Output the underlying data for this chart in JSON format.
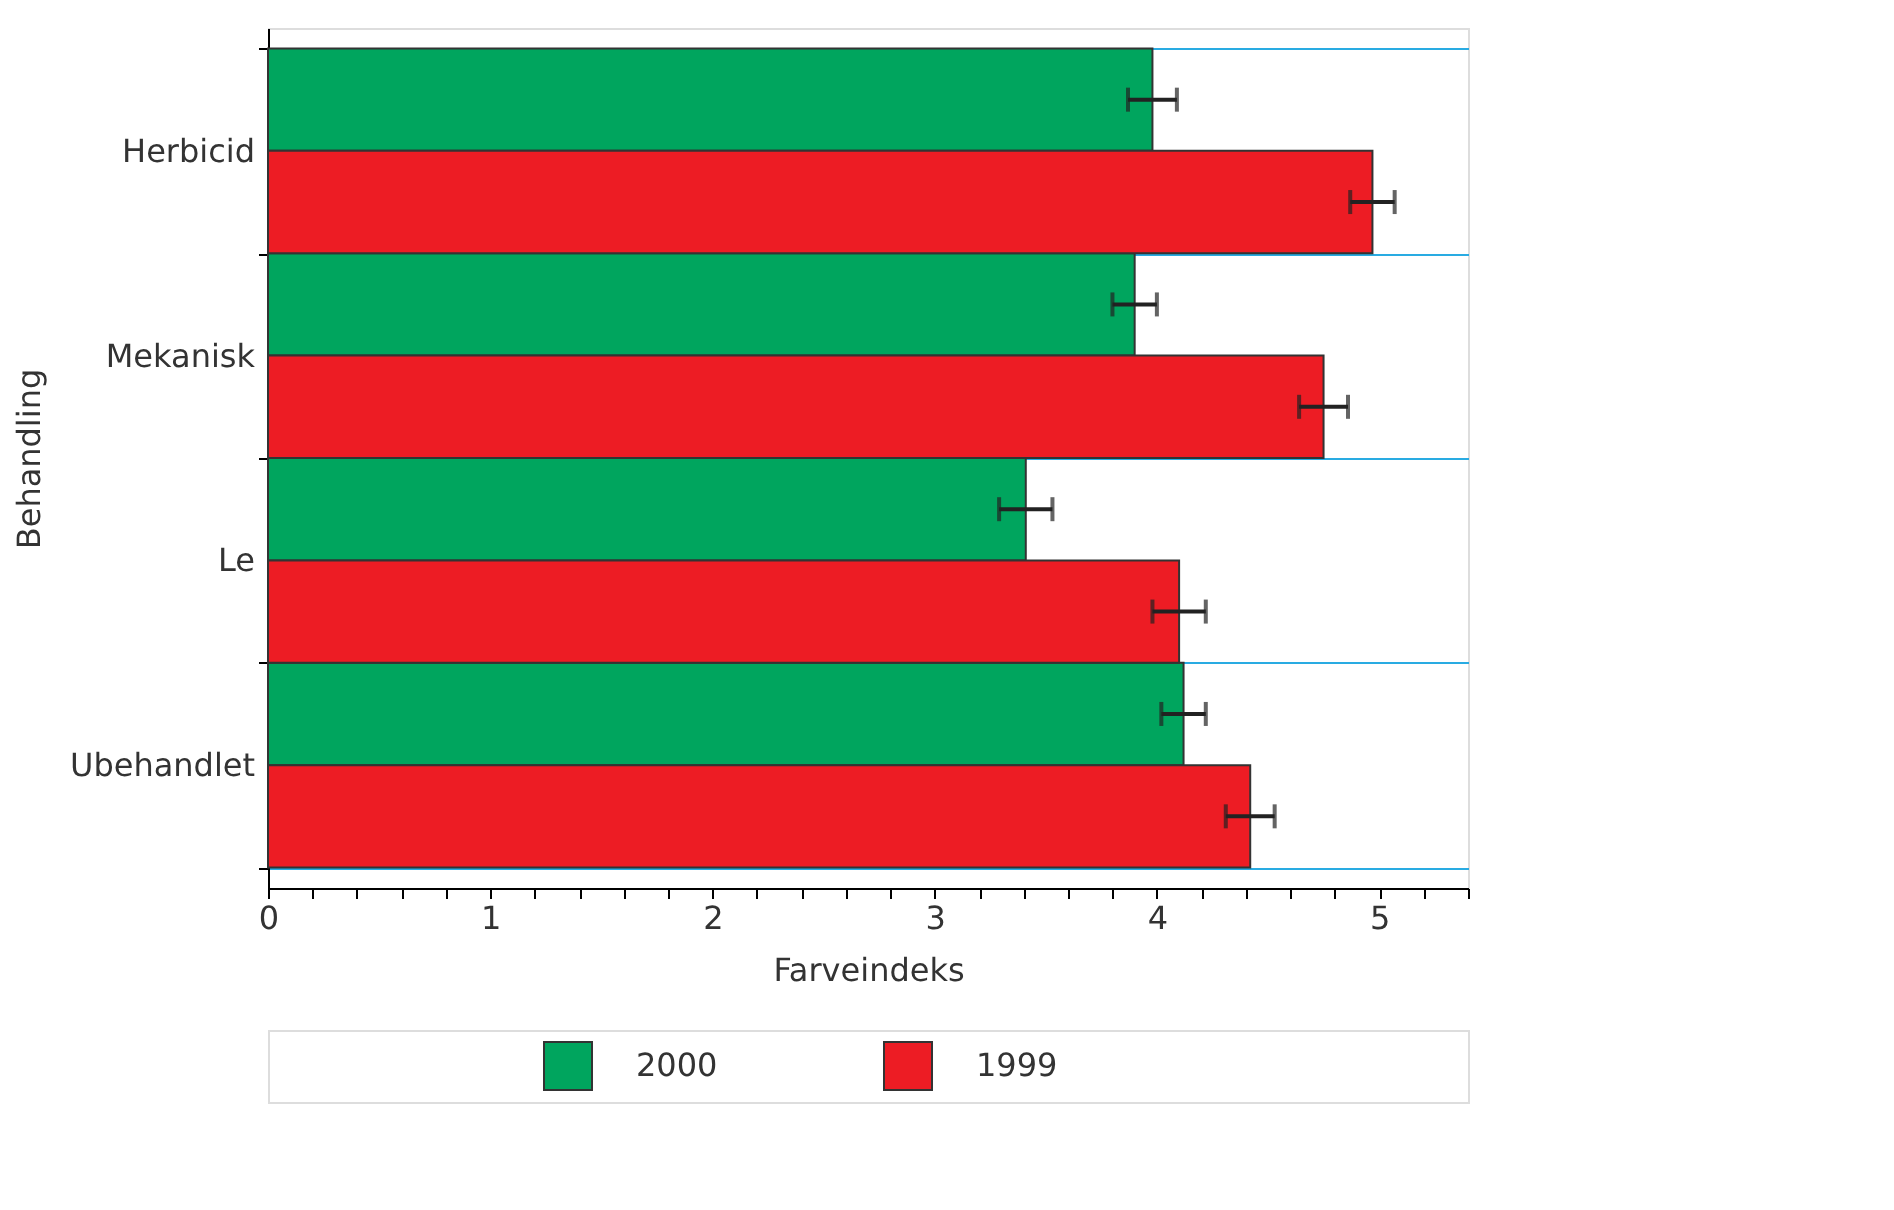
{
  "chart_data": {
    "type": "bar",
    "orientation": "horizontal",
    "xlabel": "Farveindeks",
    "ylabel": "Behandling",
    "categories": [
      "Herbicid",
      "Mekanisk",
      "Le",
      "Ubehandlet"
    ],
    "series": [
      {
        "name": "2000",
        "color": "#00a55e",
        "values": [
          3.98,
          3.9,
          3.41,
          4.12
        ],
        "errors": [
          0.11,
          0.1,
          0.12,
          0.1
        ]
      },
      {
        "name": "1999",
        "color": "#ed1c24",
        "values": [
          4.97,
          4.75,
          4.1,
          4.42
        ],
        "errors": [
          0.1,
          0.11,
          0.12,
          0.11
        ]
      }
    ],
    "xlim": [
      0,
      5.4
    ],
    "xticks": [
      0,
      {
        "value": 0.2,
        "label": null
      },
      {
        "value": 0.4,
        "label": null
      },
      {
        "value": 0.6,
        "label": null
      },
      {
        "value": 0.8,
        "label": null
      },
      1,
      {
        "value": 1.2,
        "label": null
      },
      {
        "value": 1.4,
        "label": null
      },
      {
        "value": 1.6,
        "label": null
      },
      {
        "value": 1.8,
        "label": null
      },
      2,
      {
        "value": 2.2,
        "label": null
      },
      {
        "value": 2.4,
        "label": null
      },
      {
        "value": 2.6,
        "label": null
      },
      {
        "value": 2.8,
        "label": null
      },
      3,
      {
        "value": 3.2,
        "label": null
      },
      {
        "value": 3.4,
        "label": null
      },
      {
        "value": 3.6,
        "label": null
      },
      {
        "value": 3.8,
        "label": null
      },
      4,
      {
        "value": 4.2,
        "label": null
      },
      {
        "value": 4.4,
        "label": null
      },
      {
        "value": 4.6,
        "label": null
      },
      {
        "value": 4.8,
        "label": null
      },
      5,
      {
        "value": 5.2,
        "label": null
      },
      {
        "value": 5.4,
        "label": null
      }
    ],
    "grid": "y",
    "legend": "bottom"
  }
}
